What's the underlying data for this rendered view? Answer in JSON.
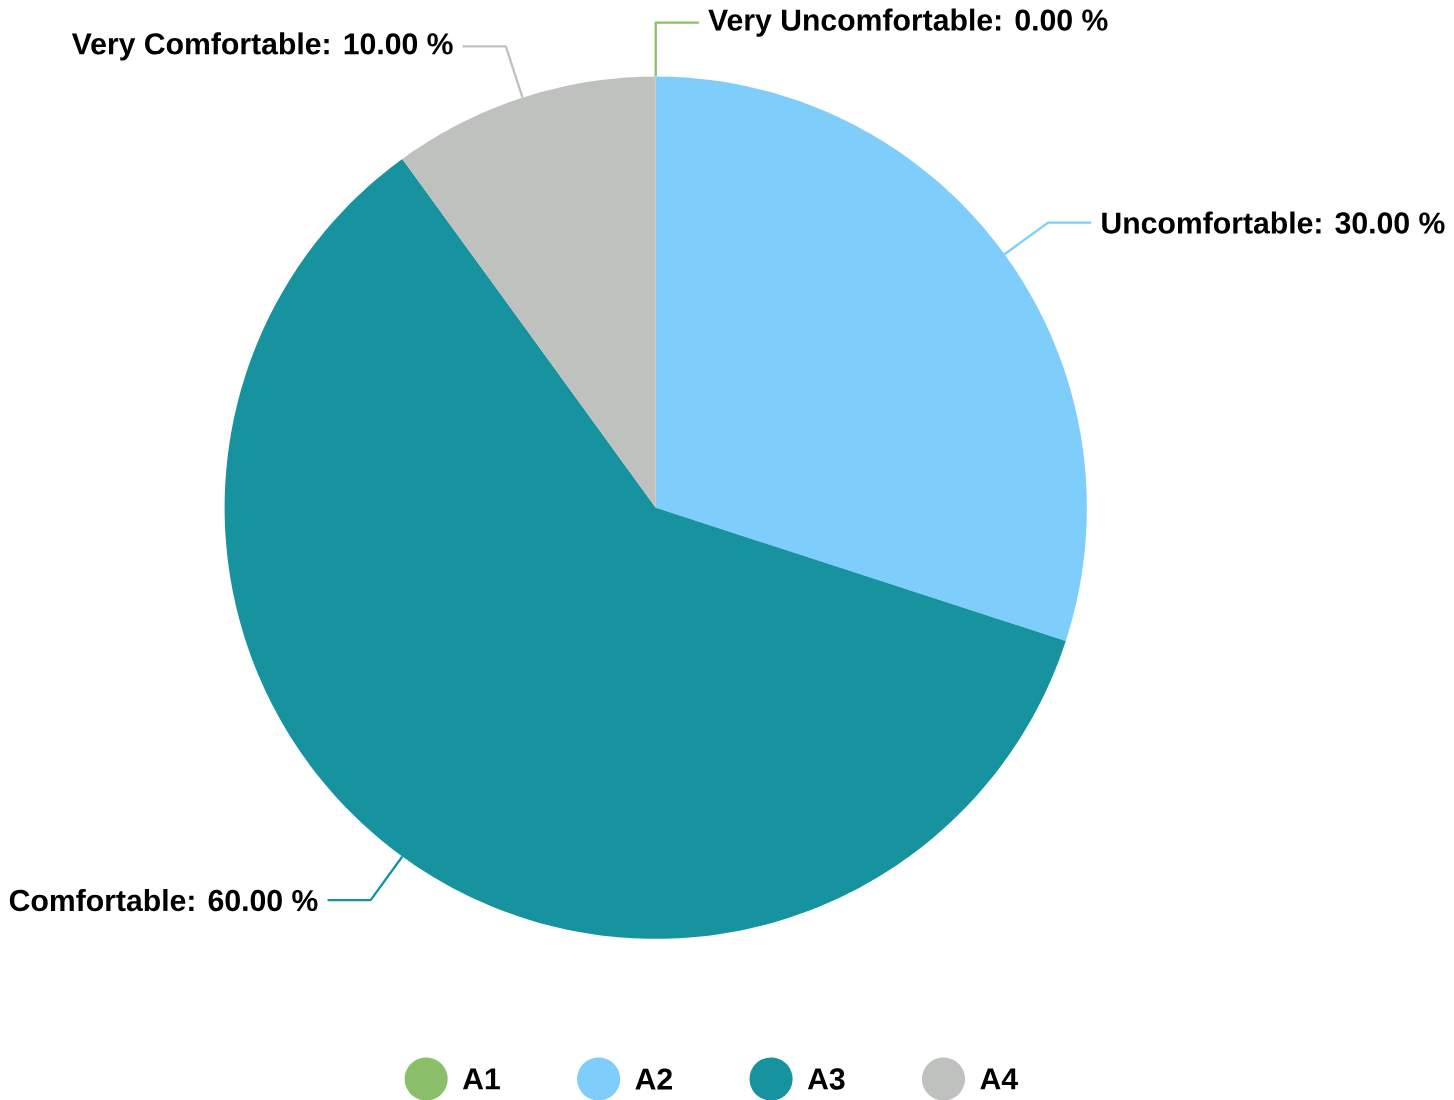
{
  "chart_data": {
    "type": "pie",
    "categories": [
      "A1",
      "A2",
      "A3",
      "A4"
    ],
    "values": [
      0,
      30,
      60,
      10
    ],
    "colors": [
      "#8cbf6a",
      "#7fcdfb",
      "#17939f",
      "#bfc1bf"
    ],
    "value_labels": [
      "Very Uncomfortable: 0.00 %",
      "Uncomfortable: 30.00 %",
      "Comfortable: 60.00 %",
      "Very Comfortable: 10.00 %"
    ],
    "legend": "bottom"
  }
}
